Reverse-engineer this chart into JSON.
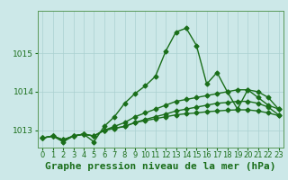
{
  "bg_color": "#cce8e8",
  "grid_color": "#aad0d0",
  "line_color": "#1a6e1a",
  "title": "Graphe pression niveau de la mer (hPa)",
  "xlim": [
    -0.5,
    23.5
  ],
  "ylim": [
    1012.55,
    1016.1
  ],
  "yticks": [
    1013,
    1014,
    1015
  ],
  "xticks": [
    0,
    1,
    2,
    3,
    4,
    5,
    6,
    7,
    8,
    9,
    10,
    11,
    12,
    13,
    14,
    15,
    16,
    17,
    18,
    19,
    20,
    21,
    22,
    23
  ],
  "series1": [
    1012.8,
    1012.85,
    1012.7,
    1012.85,
    1012.9,
    1012.7,
    1013.1,
    1013.35,
    1013.7,
    1013.95,
    1014.15,
    1014.4,
    1015.05,
    1015.55,
    1015.65,
    1015.2,
    1014.2,
    1014.5,
    1014.0,
    1013.55,
    1014.05,
    1013.85,
    1013.65,
    1013.55
  ],
  "series2": [
    1012.8,
    1012.85,
    1012.75,
    1012.85,
    1012.9,
    1012.85,
    1013.0,
    1013.1,
    1013.2,
    1013.35,
    1013.45,
    1013.55,
    1013.65,
    1013.75,
    1013.8,
    1013.85,
    1013.9,
    1013.95,
    1014.0,
    1014.05,
    1014.05,
    1014.0,
    1013.85,
    1013.55
  ],
  "series3": [
    1012.8,
    1012.85,
    1012.75,
    1012.85,
    1012.9,
    1012.85,
    1013.0,
    1013.05,
    1013.1,
    1013.2,
    1013.28,
    1013.35,
    1013.42,
    1013.5,
    1013.55,
    1013.6,
    1013.65,
    1013.7,
    1013.72,
    1013.75,
    1013.75,
    1013.7,
    1013.6,
    1013.4
  ],
  "series4": [
    1012.8,
    1012.85,
    1012.75,
    1012.85,
    1012.9,
    1012.85,
    1013.0,
    1013.05,
    1013.1,
    1013.2,
    1013.25,
    1013.3,
    1013.35,
    1013.4,
    1013.43,
    1013.45,
    1013.48,
    1013.5,
    1013.52,
    1013.53,
    1013.53,
    1013.5,
    1013.45,
    1013.38
  ],
  "marker": "D",
  "markersize": 2.5,
  "linewidth": 1.0,
  "title_fontsize": 8,
  "tick_fontsize": 6.5
}
